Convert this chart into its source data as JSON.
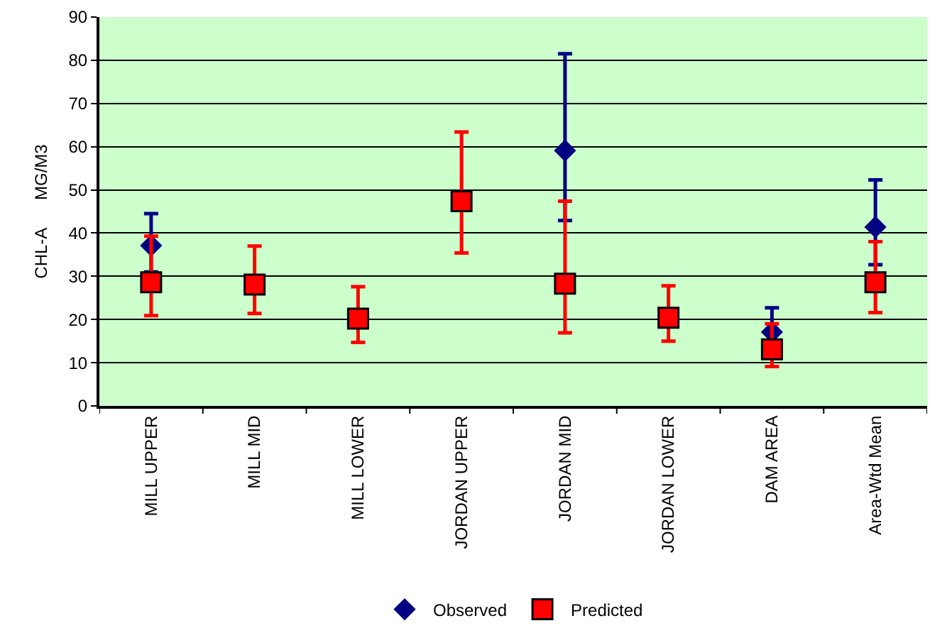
{
  "chart_data": {
    "type": "scatter",
    "ylabel": "CHL-A      MG/M3",
    "categories": [
      "MILL UPPER",
      "MILL MID",
      "MILL LOWER",
      "JORDAN UPPER",
      "JORDAN MID",
      "JORDAN LOWER",
      "DAM AREA",
      "Area-Wtd Mean"
    ],
    "series": [
      {
        "name": "Observed",
        "color": "#000080",
        "marker": "diamond",
        "values": [
          37.1,
          null,
          null,
          null,
          59.1,
          null,
          17.1,
          41.4
        ],
        "errors": [
          [
            31.0,
            44.5
          ],
          null,
          null,
          null,
          [
            42.9,
            81.5
          ],
          null,
          [
            11.5,
            22.7
          ],
          [
            32.7,
            52.3
          ]
        ]
      },
      {
        "name": "Predicted",
        "color": "#ff0000",
        "marker": "square",
        "values": [
          28.6,
          28.1,
          20.2,
          47.4,
          28.3,
          20.4,
          13.1,
          28.6
        ],
        "errors": [
          [
            20.9,
            39.3
          ],
          [
            21.4,
            37.0
          ],
          [
            14.7,
            27.6
          ],
          [
            35.4,
            63.4
          ],
          [
            16.9,
            47.4
          ],
          [
            15.0,
            27.8
          ],
          [
            9.1,
            19.0
          ],
          [
            21.6,
            38.0
          ]
        ]
      }
    ],
    "ylim": [
      0,
      90
    ],
    "yticks": [
      0,
      10,
      20,
      30,
      40,
      50,
      60,
      70,
      80,
      90
    ],
    "grid": "y",
    "legend": "bottom"
  }
}
